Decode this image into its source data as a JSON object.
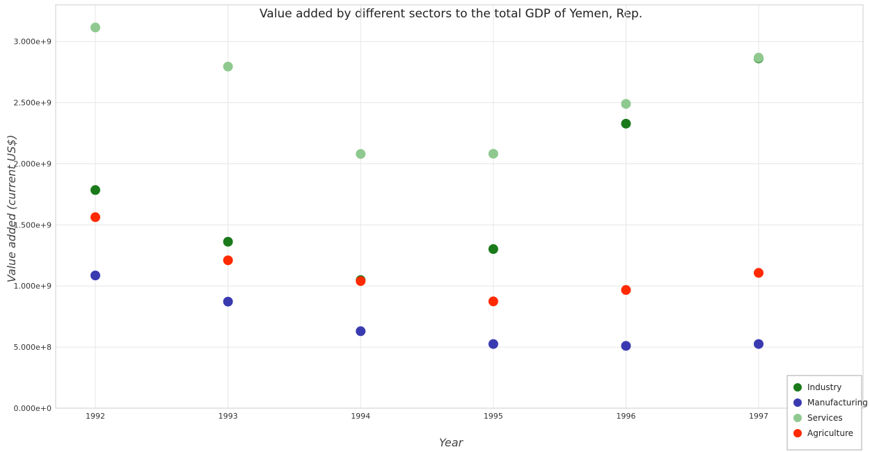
{
  "chart_data": {
    "type": "scatter",
    "title": "Value added by different sectors to the total GDP of Yemen, Rep.",
    "xlabel": "Year",
    "ylabel": "Value added (current US$)",
    "categories": [
      "1992",
      "1993",
      "1994",
      "1995",
      "1996",
      "1997"
    ],
    "y_ticks": [
      "0.000e+0",
      "5.000e+8",
      "1.000e+9",
      "1.500e+9",
      "2.000e+9",
      "2.500e+9",
      "3.000e+9"
    ],
    "ylim": [
      0,
      3300000000
    ],
    "grid": true,
    "legend_position": "bottom-right",
    "series": [
      {
        "name": "Industry",
        "color": "#1a7a1a",
        "values": [
          1785000000,
          1362000000,
          1048000000,
          1302000000,
          2328000000,
          2862000000
        ]
      },
      {
        "name": "Manufacturing",
        "color": "#3a3ab0",
        "values": [
          1086000000,
          872000000,
          630000000,
          525000000,
          510000000,
          525000000
        ]
      },
      {
        "name": "Services",
        "color": "#8fc98f",
        "values": [
          3115000000,
          2795000000,
          2080000000,
          2082000000,
          2490000000,
          2868000000
        ]
      },
      {
        "name": "Agriculture",
        "color": "#ff2a00",
        "values": [
          1563000000,
          1210000000,
          1040000000,
          874000000,
          967000000,
          1107000000
        ]
      }
    ]
  }
}
